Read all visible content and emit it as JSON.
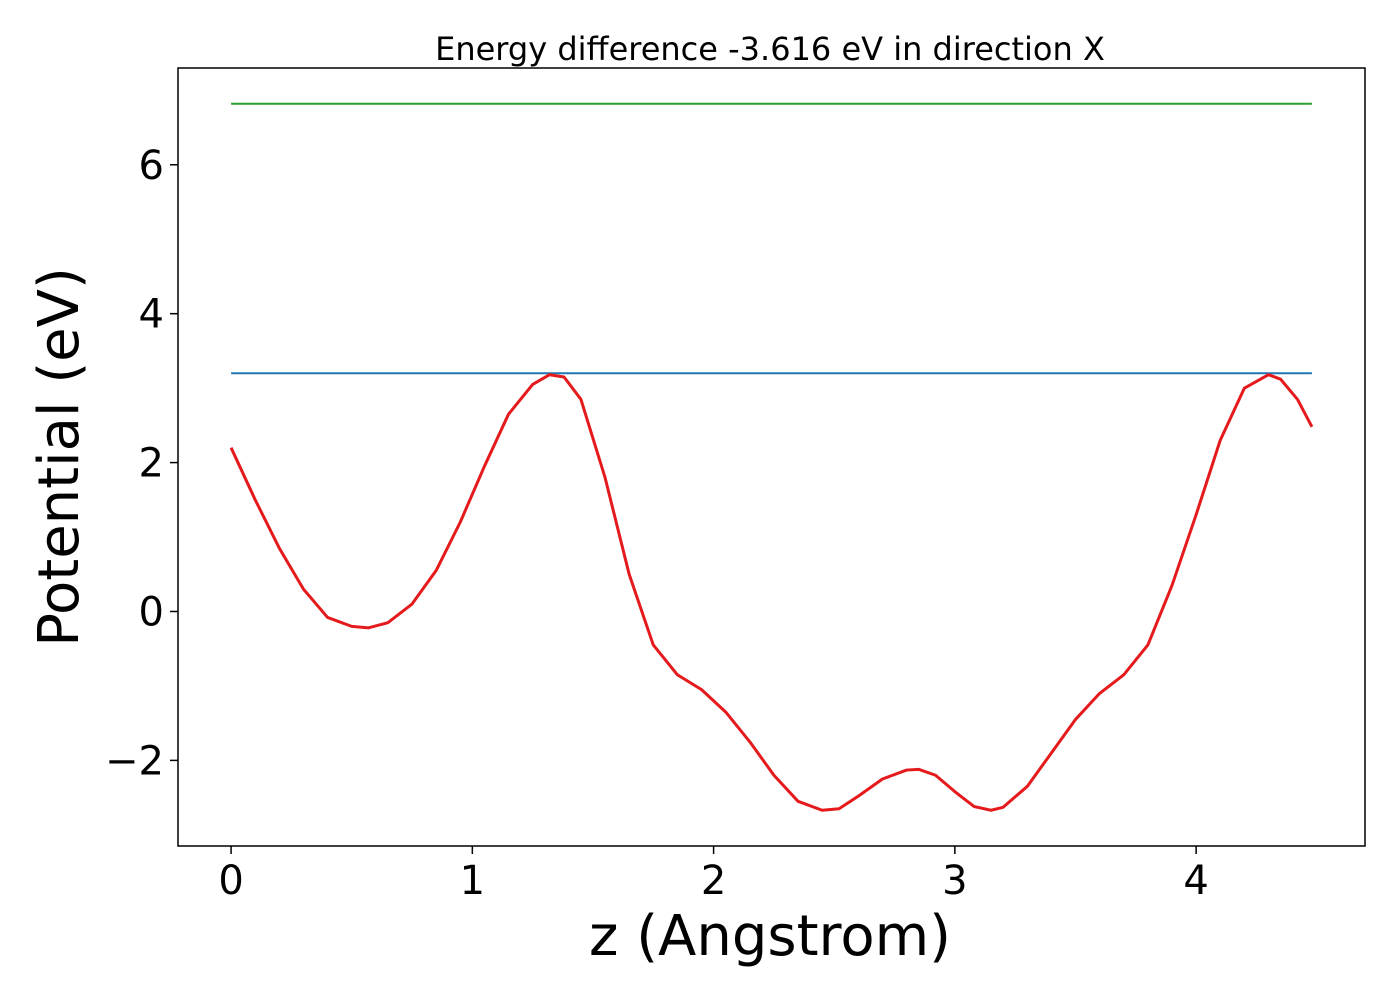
{
  "chart_data": {
    "type": "line",
    "title": "Energy difference -3.616 eV in direction X",
    "xlabel": "z (Angstrom)",
    "ylabel": "Potential (eV)",
    "xlim": [
      -0.22,
      4.7
    ],
    "ylim": [
      -3.15,
      7.3
    ],
    "xticks": [
      0,
      1,
      2,
      3,
      4
    ],
    "yticks": [
      -2,
      0,
      2,
      4,
      6
    ],
    "xtick_labels": [
      "0",
      "1",
      "2",
      "3",
      "4"
    ],
    "ytick_labels": [
      "−2",
      "0",
      "2",
      "4",
      "6"
    ],
    "grid": false,
    "series": [
      {
        "color": "#2ca02c",
        "x": [
          0,
          4.48
        ],
        "y": [
          6.82,
          6.82
        ]
      },
      {
        "color": "#1f77b4",
        "x": [
          0,
          4.48
        ],
        "y": [
          3.2,
          3.2
        ]
      },
      {
        "color": "#e41a1c",
        "x": [
          0,
          0.1,
          0.2,
          0.3,
          0.4,
          0.5,
          0.57,
          0.65,
          0.75,
          0.85,
          0.95,
          1.05,
          1.15,
          1.25,
          1.32,
          1.38,
          1.45,
          1.55,
          1.65,
          1.75,
          1.85,
          1.95,
          2.05,
          2.15,
          2.25,
          2.35,
          2.45,
          2.52,
          2.6,
          2.7,
          2.8,
          2.85,
          2.92,
          3.0,
          3.08,
          3.15,
          3.2,
          3.3,
          3.4,
          3.5,
          3.6,
          3.7,
          3.8,
          3.9,
          4.0,
          4.1,
          4.2,
          4.3,
          4.35,
          4.42,
          4.48
        ],
        "y": [
          2.2,
          1.5,
          0.85,
          0.3,
          -0.08,
          -0.2,
          -0.22,
          -0.15,
          0.1,
          0.55,
          1.2,
          1.95,
          2.65,
          3.05,
          3.18,
          3.15,
          2.85,
          1.8,
          0.5,
          -0.45,
          -0.85,
          -1.05,
          -1.35,
          -1.75,
          -2.2,
          -2.55,
          -2.67,
          -2.65,
          -2.48,
          -2.25,
          -2.13,
          -2.12,
          -2.2,
          -2.42,
          -2.62,
          -2.67,
          -2.63,
          -2.35,
          -1.9,
          -1.45,
          -1.1,
          -0.85,
          -0.45,
          0.35,
          1.3,
          2.3,
          3.0,
          3.18,
          3.12,
          2.85,
          2.48
        ]
      }
    ]
  }
}
